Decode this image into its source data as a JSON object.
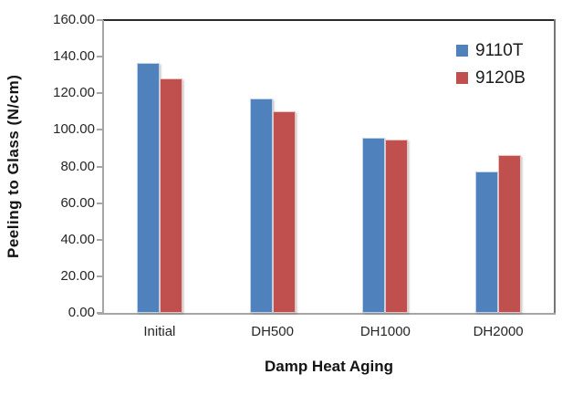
{
  "chart_data": {
    "type": "bar",
    "title": "",
    "categories": [
      "Initial",
      "DH500",
      "DH1000",
      "DH2000"
    ],
    "series": [
      {
        "name": "9110T",
        "color": "#4F81BD",
        "values": [
          136.5,
          117.0,
          95.5,
          77.5
        ]
      },
      {
        "name": "9120B",
        "color": "#C0504D",
        "values": [
          128.0,
          110.0,
          94.5,
          86.0
        ]
      }
    ],
    "xlabel": "Damp Heat Aging",
    "ylabel": "Peeling to Glass (N/cm)",
    "ylim": [
      0,
      160
    ],
    "ytick_step": 20,
    "ytick_labels": [
      "0.00",
      "20.00",
      "40.00",
      "60.00",
      "80.00",
      "100.00",
      "120.00",
      "140.00",
      "160.00"
    ],
    "grid": false,
    "legend_position": "top-right-inside"
  },
  "colors": {
    "axis_line": "#A6A6A6",
    "plot_border_top": "#2B2B2B",
    "plot_border_right": "#767676",
    "text": "#262626"
  }
}
